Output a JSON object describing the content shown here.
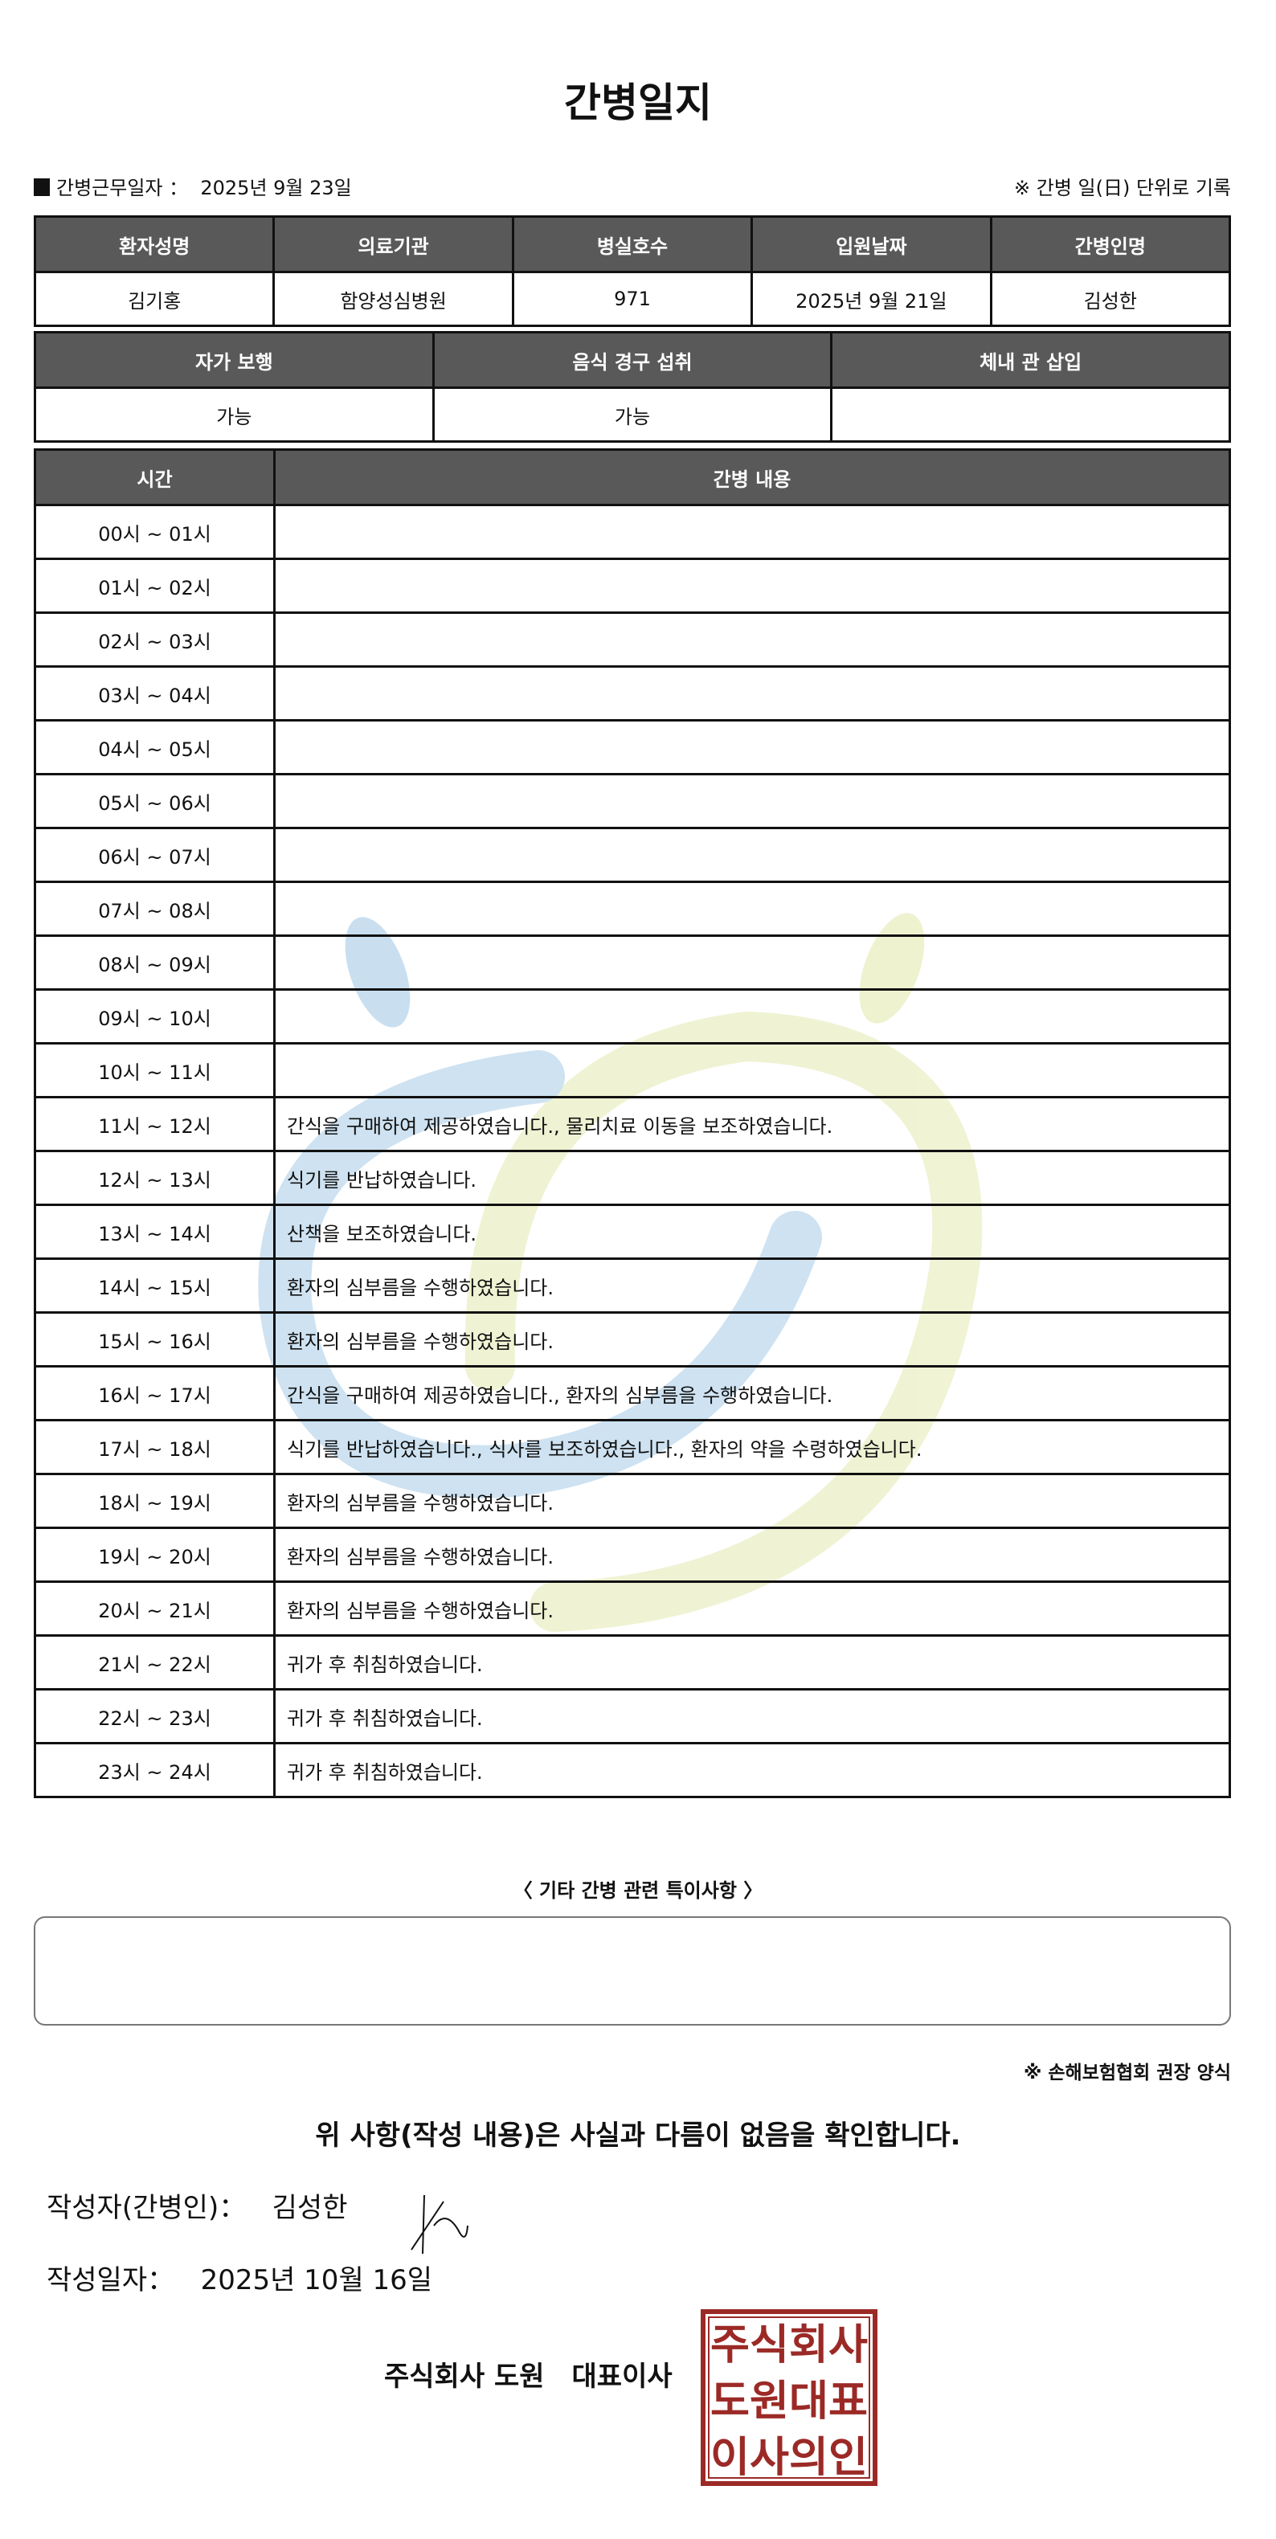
{
  "title": "간병일지",
  "work_date": {
    "label": "간병근무일자 ：",
    "value": "2025년 9월 23일"
  },
  "record_note": "※ 간병 일(日) 단위로 기록",
  "patient_table": {
    "headers": [
      "환자성명",
      "의료기관",
      "병실호수",
      "입원날짜",
      "간병인명"
    ],
    "values": [
      "김기홍",
      "함양성심병원",
      "971",
      "2025년 9월 21일",
      "김성한"
    ]
  },
  "status_table": {
    "headers": [
      "자가 보행",
      "음식 경구 섭취",
      "체내 관 삽입"
    ],
    "values": [
      "가능",
      "가능",
      ""
    ]
  },
  "log_table": {
    "headers": [
      "시간",
      "간병 내용"
    ],
    "rows": [
      {
        "time": "00시 ~ 01시",
        "content": ""
      },
      {
        "time": "01시 ~ 02시",
        "content": ""
      },
      {
        "time": "02시 ~ 03시",
        "content": ""
      },
      {
        "time": "03시 ~ 04시",
        "content": ""
      },
      {
        "time": "04시 ~ 05시",
        "content": ""
      },
      {
        "time": "05시 ~ 06시",
        "content": ""
      },
      {
        "time": "06시 ~ 07시",
        "content": ""
      },
      {
        "time": "07시 ~ 08시",
        "content": ""
      },
      {
        "time": "08시 ~ 09시",
        "content": ""
      },
      {
        "time": "09시 ~ 10시",
        "content": ""
      },
      {
        "time": "10시 ~ 11시",
        "content": ""
      },
      {
        "time": "11시 ~ 12시",
        "content": "간식을 구매하여 제공하였습니다., 물리치료 이동을 보조하였습니다."
      },
      {
        "time": "12시 ~ 13시",
        "content": "식기를 반납하였습니다."
      },
      {
        "time": "13시 ~ 14시",
        "content": "산책을 보조하였습니다."
      },
      {
        "time": "14시 ~ 15시",
        "content": "환자의 심부름을 수행하였습니다."
      },
      {
        "time": "15시 ~ 16시",
        "content": "환자의 심부름을 수행하였습니다."
      },
      {
        "time": "16시 ~ 17시",
        "content": "간식을 구매하여 제공하였습니다., 환자의 심부름을 수행하였습니다."
      },
      {
        "time": "17시 ~ 18시",
        "content": "식기를 반납하였습니다., 식사를 보조하였습니다., 환자의 약을 수령하였습니다."
      },
      {
        "time": "18시 ~ 19시",
        "content": "환자의 심부름을 수행하였습니다."
      },
      {
        "time": "19시 ~ 20시",
        "content": "환자의 심부름을 수행하였습니다."
      },
      {
        "time": "20시 ~ 21시",
        "content": "환자의 심부름을 수행하였습니다."
      },
      {
        "time": "21시 ~ 22시",
        "content": "귀가 후 취침하였습니다."
      },
      {
        "time": "22시 ~ 23시",
        "content": "귀가 후 취침하였습니다."
      },
      {
        "time": "23시 ~ 24시",
        "content": "귀가 후 취침하였습니다."
      }
    ]
  },
  "notes": {
    "label": "〈 기타 간병 관련 특이사항 〉",
    "value": ""
  },
  "recommendation": "※ 손해보험협회 권장 양식",
  "confirmation": "위 사항(작성 내용)은 사실과 다름이 없음을 확인합니다.",
  "author": {
    "label": "작성자(간병인)：",
    "name": "김성한"
  },
  "written_date": {
    "label": "작성일자：",
    "value": "2025년 10월 16일"
  },
  "company": "주식회사 도원　대표이사",
  "seal_text": [
    "주식회사",
    "도원대표",
    "이사의인"
  ],
  "colors": {
    "header_bg": "#595959",
    "seal": "#9b2a26",
    "watermark_blue": "#c9dff0",
    "watermark_yellow": "#eef2cf"
  }
}
